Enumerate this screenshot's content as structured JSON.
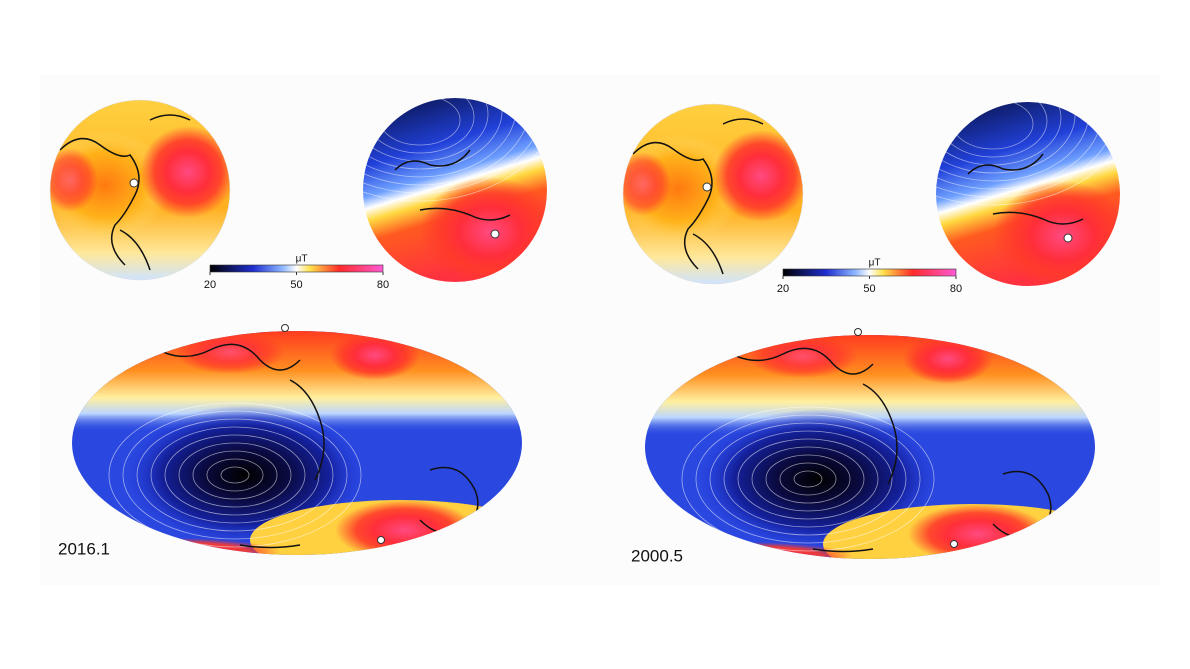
{
  "panels": [
    {
      "year": "2016.1",
      "colorbar": {
        "label": "μT",
        "lim": [
          20,
          80
        ],
        "ticks": [
          20,
          50,
          80
        ]
      }
    },
    {
      "year": "2000.5",
      "colorbar": {
        "label": "μT",
        "lim": [
          20,
          80
        ],
        "ticks": [
          20,
          50,
          80
        ]
      }
    }
  ]
}
